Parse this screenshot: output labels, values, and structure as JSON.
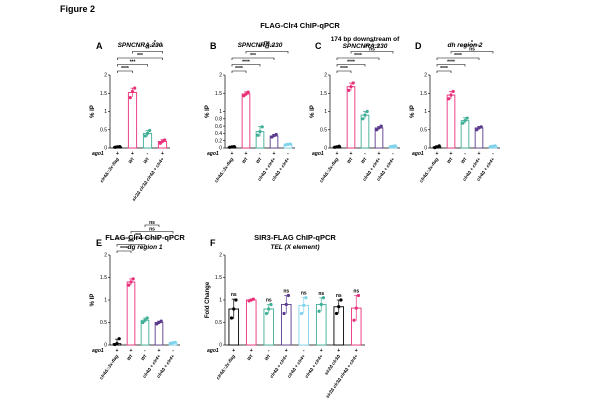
{
  "figure_label": "Figure 2",
  "main_heading": "FLAG-Clr4 ChIP-qPCR",
  "chart_data": [
    {
      "panel": "A",
      "type": "bar",
      "title": "SPNCNRA.230",
      "title_italic": true,
      "ylabel": "% IP",
      "ylim": [
        0,
        2.0
      ],
      "yticks": [
        0,
        0.5,
        1.0,
        1.5,
        2.0
      ],
      "categories": [
        "clr4Δ::3x-flag",
        "Wt",
        "Wt",
        "sir2Δ clr3Δ clr4Δ + clr4+"
      ],
      "ago1_row": [
        "+",
        "+",
        "-",
        "+"
      ],
      "colors": [
        "#000000",
        "#e8307a",
        "#3fae96",
        "#e8307a"
      ],
      "values": [
        0.03,
        1.52,
        0.4,
        0.18
      ],
      "errors": [
        0.02,
        0.12,
        0.08,
        0.05
      ],
      "points": [
        [
          0.02,
          0.03,
          0.04
        ],
        [
          1.38,
          1.55,
          1.64
        ],
        [
          0.33,
          0.4,
          0.48
        ],
        [
          0.13,
          0.18,
          0.22
        ]
      ],
      "significance": [
        {
          "from": 0,
          "to": 1,
          "label": "****"
        },
        {
          "from": 0,
          "to": 2,
          "label": "***"
        },
        {
          "from": 0,
          "to": 3,
          "label": "***"
        },
        {
          "from": 1,
          "to": 3,
          "label": "**"
        },
        {
          "from": 2,
          "to": 3,
          "label": "*"
        }
      ]
    },
    {
      "panel": "B",
      "type": "bar",
      "title": "SPNCNRA.230",
      "title_italic": true,
      "ylabel": "% IP",
      "ylim": [
        0,
        2.0
      ],
      "yticks": [
        0,
        0.2,
        0.4,
        0.6,
        0.8,
        1.0,
        1.5,
        2.0
      ],
      "categories": [
        "clr4Δ::3x-flag",
        "Wt",
        "Wt",
        "clr4Δ + clr4+",
        "clr4Δ + clr4+"
      ],
      "ago1_row": [
        "+",
        "+",
        "-",
        "+",
        "-"
      ],
      "colors": [
        "#000000",
        "#e8307a",
        "#3fae96",
        "#5b3a8e",
        "#7fd3ec"
      ],
      "values": [
        0.03,
        1.48,
        0.45,
        0.33,
        0.1
      ],
      "errors": [
        0.01,
        0.06,
        0.14,
        0.04,
        0.01
      ],
      "points": [
        [
          0.02,
          0.03,
          0.04
        ],
        [
          1.43,
          1.48,
          1.53
        ],
        [
          0.35,
          0.45,
          0.58
        ],
        [
          0.3,
          0.34,
          0.37
        ],
        [
          0.09,
          0.1,
          0.11
        ]
      ],
      "significance": [
        {
          "from": 0,
          "to": 1,
          "label": "****"
        },
        {
          "from": 0,
          "to": 2,
          "label": "****"
        },
        {
          "from": 0,
          "to": 3,
          "label": "***"
        },
        {
          "from": 1,
          "to": 4,
          "label": "**"
        },
        {
          "from": 2,
          "to": 3,
          "label": "ns"
        }
      ]
    },
    {
      "panel": "C",
      "type": "bar",
      "title": "174 bp downstream of SPNCNRA.230",
      "title_italic": false,
      "ylabel": "% IP",
      "ylim": [
        0,
        2.0
      ],
      "yticks": [
        0,
        0.5,
        1.0,
        1.5,
        2.0
      ],
      "categories": [
        "clr4Δ::3x-flag",
        "Wt",
        "Wt",
        "clr4Δ + clr4+",
        "clr4Δ + clr4+"
      ],
      "ago1_row": [
        "+",
        "+",
        "-",
        "+",
        "-"
      ],
      "colors": [
        "#000000",
        "#e8307a",
        "#3fae96",
        "#5b3a8e",
        "#7fd3ec"
      ],
      "values": [
        0.03,
        1.68,
        0.9,
        0.55,
        0.05
      ],
      "errors": [
        0.02,
        0.1,
        0.1,
        0.04,
        0.01
      ],
      "points": [
        [
          0.02,
          0.03,
          0.05
        ],
        [
          1.58,
          1.68,
          1.78
        ],
        [
          0.8,
          0.9,
          1.0
        ],
        [
          0.5,
          0.55,
          0.6
        ],
        [
          0.04,
          0.05,
          0.06
        ]
      ],
      "significance": [
        {
          "from": 0,
          "to": 1,
          "label": "****"
        },
        {
          "from": 0,
          "to": 2,
          "label": "****"
        },
        {
          "from": 0,
          "to": 3,
          "label": "****"
        },
        {
          "from": 1,
          "to": 4,
          "label": "ns"
        },
        {
          "from": 2,
          "to": 3,
          "label": "**"
        }
      ]
    },
    {
      "panel": "D",
      "type": "bar",
      "title": "dh region 2",
      "title_italic": true,
      "ylabel": "% IP",
      "ylim": [
        0,
        2.0
      ],
      "yticks": [
        0,
        0.5,
        1.0,
        1.5,
        2.0
      ],
      "categories": [
        "clr4Δ::3x-flag",
        "Wt",
        "Wt",
        "clr4Δ + clr4+",
        "clr4Δ + clr4+"
      ],
      "ago1_row": [
        "+",
        "+",
        "-",
        "+",
        "-"
      ],
      "colors": [
        "#000000",
        "#e8307a",
        "#3fae96",
        "#5b3a8e",
        "#7fd3ec"
      ],
      "values": [
        0.03,
        1.45,
        0.75,
        0.55,
        0.05
      ],
      "errors": [
        0.03,
        0.1,
        0.08,
        0.04,
        0.01
      ],
      "points": [
        [
          0.01,
          0.03,
          0.06
        ],
        [
          1.35,
          1.45,
          1.55
        ],
        [
          0.68,
          0.75,
          0.82
        ],
        [
          0.5,
          0.55,
          0.58
        ],
        [
          0.04,
          0.05,
          0.06
        ]
      ],
      "significance": [
        {
          "from": 0,
          "to": 1,
          "label": "****"
        },
        {
          "from": 0,
          "to": 2,
          "label": "****"
        },
        {
          "from": 0,
          "to": 3,
          "label": "****"
        },
        {
          "from": 1,
          "to": 4,
          "label": "ns"
        },
        {
          "from": 2,
          "to": 3,
          "label": "*"
        }
      ]
    },
    {
      "panel": "E",
      "type": "bar",
      "title": "dg region 1",
      "title_italic": true,
      "heading": "FLAG-Clr4 ChIP-qPCR",
      "ylabel": "% IP",
      "ylim": [
        0,
        2.0
      ],
      "yticks": [
        0,
        0.5,
        1.0,
        1.5,
        2.0
      ],
      "categories": [
        "clr4Δ::3x-flag",
        "Wt",
        "Wt",
        "clr4Δ + clr4+",
        "clr4Δ + clr4+"
      ],
      "ago1_row": [
        "+",
        "+",
        "-",
        "+",
        "-"
      ],
      "colors": [
        "#000000",
        "#e8307a",
        "#3fae96",
        "#5b3a8e",
        "#7fd3ec"
      ],
      "values": [
        0.03,
        1.4,
        0.55,
        0.5,
        0.05
      ],
      "errors": [
        0.1,
        0.07,
        0.05,
        0.03,
        0.01
      ],
      "points": [
        [
          0.01,
          0.03,
          0.14
        ],
        [
          1.33,
          1.4,
          1.47
        ],
        [
          0.5,
          0.55,
          0.6
        ],
        [
          0.47,
          0.5,
          0.53
        ],
        [
          0.04,
          0.05,
          0.06
        ]
      ],
      "significance": [
        {
          "from": 0,
          "to": 1,
          "label": "****"
        },
        {
          "from": 0,
          "to": 2,
          "label": "***"
        },
        {
          "from": 0,
          "to": 3,
          "label": "***"
        },
        {
          "from": 1,
          "to": 4,
          "label": "ns"
        },
        {
          "from": 2,
          "to": 3,
          "label": "ns"
        }
      ]
    },
    {
      "panel": "F",
      "type": "bar",
      "title": "TEL (X element)",
      "title_italic": true,
      "heading": "SIR3-FLAG ChIP-qPCR",
      "ylabel": "Fold Change",
      "ylim": [
        0,
        2.0
      ],
      "yticks": [
        0,
        0.5,
        1.0,
        1.5,
        2.0
      ],
      "categories": [
        "clr4Δ::3x-flag",
        "Wt",
        "Wt",
        "clr4Δ + clr4+",
        "clr4Δ + clr4+",
        "clr4Δ + clr4+",
        "sir2Δ clr3Δ",
        "sir2Δ clr3Δ clr4Δ + clr4+"
      ],
      "ago1_row": [
        "+",
        "+",
        "-",
        "+",
        "-",
        "+",
        "+",
        "+"
      ],
      "colors": [
        "#000000",
        "#e8307a",
        "#3fae96",
        "#5b3a8e",
        "#7fd3ec",
        "#3fae96",
        "#000000",
        "#e8307a"
      ],
      "values": [
        0.8,
        1.0,
        0.8,
        0.9,
        0.88,
        0.9,
        0.85,
        0.82
      ],
      "errors": [
        0.22,
        0.02,
        0.1,
        0.2,
        0.18,
        0.15,
        0.15,
        0.28
      ],
      "points": [
        [
          0.6,
          0.8,
          1.0
        ],
        [
          0.98,
          1.0,
          1.02
        ],
        [
          0.7,
          0.8,
          0.9
        ],
        [
          0.7,
          0.9,
          1.1
        ],
        [
          0.7,
          0.88,
          1.05
        ],
        [
          0.75,
          0.9,
          1.05
        ],
        [
          0.7,
          0.85,
          1.0
        ],
        [
          0.55,
          0.82,
          1.1
        ]
      ],
      "bar_labels": [
        "ns",
        "",
        "ns",
        "ns",
        "ns",
        "ns",
        "ns",
        "ns"
      ],
      "significance": []
    }
  ]
}
